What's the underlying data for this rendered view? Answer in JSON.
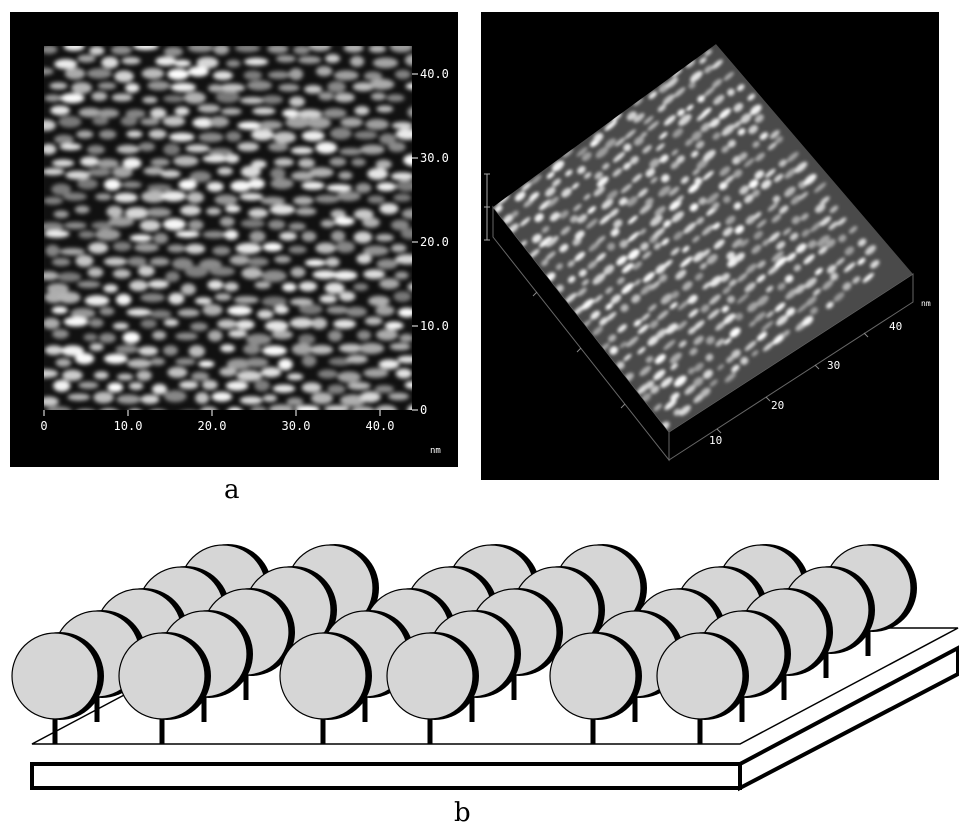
{
  "figure": {
    "caption_a": "a",
    "caption_b": "b"
  },
  "afm_2d": {
    "x_ticks": [
      "0",
      "10.0",
      "20.0",
      "30.0",
      "40.0"
    ],
    "y_ticks": [
      "0",
      "10.0",
      "20.0",
      "30.0",
      "40.0"
    ],
    "unit": "nm"
  },
  "afm_3d": {
    "axis_ticks": [
      "10",
      "20",
      "30",
      "40"
    ],
    "unit": "nm"
  },
  "colors": {
    "background": "#000000",
    "tick_text": "#ffffff",
    "sphere_fill": "#d6d6d6",
    "outline": "#000000"
  }
}
